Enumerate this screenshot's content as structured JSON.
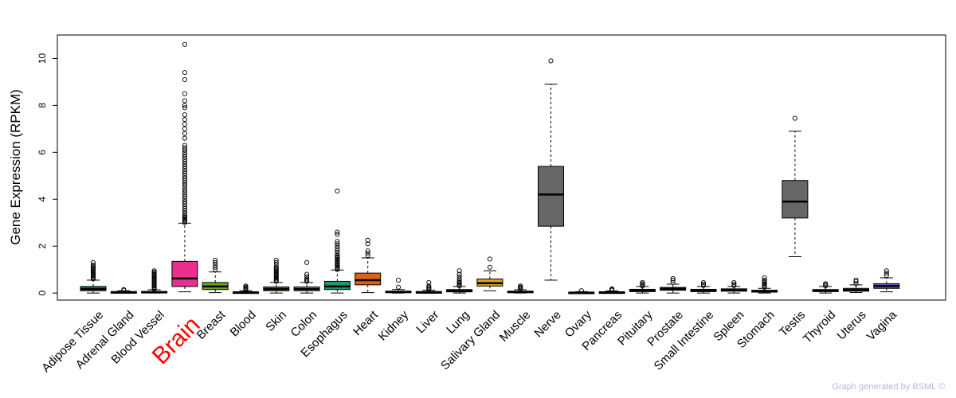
{
  "chart_data": {
    "type": "boxplot",
    "ylabel": "Gene Expression (RPKM)",
    "ylim": [
      -0.3,
      11
    ],
    "yticks": [
      0,
      2,
      4,
      6,
      8,
      10
    ],
    "highlight_category": "Brain",
    "highlight_color": "#ff0000",
    "categories": [
      "Adipose Tissue",
      "Adrenal Gland",
      "Blood Vessel",
      "Brain",
      "Breast",
      "Blood",
      "Skin",
      "Colon",
      "Esophagus",
      "Heart",
      "Kidney",
      "Liver",
      "Lung",
      "Salivary Gland",
      "Muscle",
      "Nerve",
      "Ovary",
      "Pancreas",
      "Pituitary",
      "Prostate",
      "Small Intestine",
      "Spleen",
      "Stomach",
      "Testis",
      "Thyroid",
      "Uterus",
      "Vagina"
    ],
    "boxes": [
      {
        "name": "Adipose Tissue",
        "color": "#1a7a4a",
        "whisker_low": 0.0,
        "q1": 0.1,
        "median": 0.17,
        "q3": 0.28,
        "whisker_high": 0.55,
        "outliers": [
          0.6,
          0.65,
          0.7,
          0.75,
          0.8,
          0.85,
          0.9,
          0.95,
          1.0,
          1.05,
          1.1,
          1.15,
          1.2,
          1.3
        ]
      },
      {
        "name": "Adrenal Gland",
        "color": "#444444",
        "whisker_low": 0.0,
        "q1": 0.02,
        "median": 0.04,
        "q3": 0.06,
        "whisker_high": 0.1,
        "outliers": [
          0.12,
          0.15
        ]
      },
      {
        "name": "Blood Vessel",
        "color": "#222222",
        "whisker_low": 0.0,
        "q1": 0.02,
        "median": 0.04,
        "q3": 0.07,
        "whisker_high": 0.14,
        "outliers": [
          0.16,
          0.2,
          0.25,
          0.3,
          0.35,
          0.4,
          0.45,
          0.5,
          0.55,
          0.6,
          0.65,
          0.7,
          0.75,
          0.8,
          0.85,
          0.9,
          0.95
        ]
      },
      {
        "name": "Brain",
        "color": "#e8308f",
        "whisker_low": 0.05,
        "q1": 0.28,
        "median": 0.62,
        "q3": 1.35,
        "whisker_high": 2.98,
        "outliers": [
          3.0,
          3.05,
          3.1,
          3.15,
          3.2,
          3.25,
          3.3,
          3.4,
          3.5,
          3.6,
          3.7,
          3.8,
          3.9,
          4.0,
          4.1,
          4.2,
          4.3,
          4.4,
          4.5,
          4.6,
          4.7,
          4.8,
          4.9,
          5.0,
          5.1,
          5.2,
          5.3,
          5.4,
          5.5,
          5.6,
          5.7,
          5.8,
          5.9,
          6.0,
          6.1,
          6.2,
          6.3,
          6.6,
          6.8,
          7.0,
          7.2,
          7.4,
          7.6,
          7.9,
          8.0,
          8.2,
          8.5,
          9.1,
          9.4,
          10.6
        ]
      },
      {
        "name": "Breast",
        "color": "#6aa520",
        "whisker_low": 0.02,
        "q1": 0.15,
        "median": 0.28,
        "q3": 0.45,
        "whisker_high": 0.9,
        "outliers": [
          1.0,
          1.1,
          1.2,
          1.3,
          1.4
        ]
      },
      {
        "name": "Blood",
        "color": "#222222",
        "whisker_low": 0.0,
        "q1": 0.01,
        "median": 0.03,
        "q3": 0.05,
        "whisker_high": 0.1,
        "outliers": [
          0.14,
          0.18,
          0.22,
          0.26,
          0.3
        ]
      },
      {
        "name": "Skin",
        "color": "#8a6a10",
        "whisker_low": 0.0,
        "q1": 0.1,
        "median": 0.17,
        "q3": 0.26,
        "whisker_high": 0.45,
        "outliers": [
          0.5,
          0.55,
          0.6,
          0.65,
          0.7,
          0.75,
          0.8,
          0.85,
          0.9,
          0.95,
          1.0,
          1.05,
          1.1,
          1.2,
          1.3,
          1.4
        ]
      },
      {
        "name": "Colon",
        "color": "#888888",
        "whisker_low": 0.0,
        "q1": 0.1,
        "median": 0.17,
        "q3": 0.26,
        "whisker_high": 0.45,
        "outliers": [
          0.5,
          0.55,
          0.6,
          0.7,
          0.8,
          1.3
        ]
      },
      {
        "name": "Esophagus",
        "color": "#1a9a6a",
        "whisker_low": 0.0,
        "q1": 0.15,
        "median": 0.28,
        "q3": 0.5,
        "whisker_high": 0.98,
        "outliers": [
          1.0,
          1.05,
          1.1,
          1.15,
          1.2,
          1.25,
          1.3,
          1.35,
          1.4,
          1.45,
          1.5,
          1.55,
          1.6,
          1.7,
          1.8,
          1.9,
          2.0,
          2.1,
          2.2,
          2.5,
          2.6,
          4.35
        ]
      },
      {
        "name": "Heart",
        "color": "#e06010",
        "whisker_low": 0.02,
        "q1": 0.35,
        "median": 0.55,
        "q3": 0.85,
        "whisker_high": 1.5,
        "outliers": [
          1.6,
          1.7,
          1.8,
          2.1,
          2.25
        ]
      },
      {
        "name": "Kidney",
        "color": "#444444",
        "whisker_low": 0.0,
        "q1": 0.02,
        "median": 0.05,
        "q3": 0.08,
        "whisker_high": 0.15,
        "outliers": [
          0.25,
          0.55
        ]
      },
      {
        "name": "Liver",
        "color": "#444444",
        "whisker_low": 0.0,
        "q1": 0.02,
        "median": 0.04,
        "q3": 0.06,
        "whisker_high": 0.12,
        "outliers": [
          0.15,
          0.2,
          0.25,
          0.3,
          0.45
        ]
      },
      {
        "name": "Lung",
        "color": "#666666",
        "whisker_low": 0.0,
        "q1": 0.05,
        "median": 0.09,
        "q3": 0.15,
        "whisker_high": 0.28,
        "outliers": [
          0.3,
          0.35,
          0.4,
          0.45,
          0.5,
          0.6,
          0.7,
          0.8,
          0.95
        ]
      },
      {
        "name": "Salivary Gland",
        "color": "#e0a020",
        "whisker_low": 0.1,
        "q1": 0.3,
        "median": 0.42,
        "q3": 0.6,
        "whisker_high": 0.95,
        "outliers": [
          1.1,
          1.45
        ]
      },
      {
        "name": "Muscle",
        "color": "#666666",
        "whisker_low": 0.0,
        "q1": 0.02,
        "median": 0.05,
        "q3": 0.08,
        "whisker_high": 0.14,
        "outliers": [
          0.18,
          0.22,
          0.26,
          0.3
        ]
      },
      {
        "name": "Nerve",
        "color": "#666666",
        "whisker_low": 0.55,
        "q1": 2.85,
        "median": 4.2,
        "q3": 5.4,
        "whisker_high": 8.9,
        "outliers": [
          9.9
        ]
      },
      {
        "name": "Ovary",
        "color": "#444444",
        "whisker_low": 0.0,
        "q1": 0.01,
        "median": 0.02,
        "q3": 0.04,
        "whisker_high": 0.06,
        "outliers": [
          0.1
        ]
      },
      {
        "name": "Pancreas",
        "color": "#444444",
        "whisker_low": 0.0,
        "q1": 0.01,
        "median": 0.03,
        "q3": 0.05,
        "whisker_high": 0.09,
        "outliers": [
          0.12,
          0.15,
          0.18
        ]
      },
      {
        "name": "Pituitary",
        "color": "#444444",
        "whisker_low": 0.0,
        "q1": 0.06,
        "median": 0.1,
        "q3": 0.16,
        "whisker_high": 0.28,
        "outliers": [
          0.3,
          0.35,
          0.4,
          0.45
        ]
      },
      {
        "name": "Prostate",
        "color": "#a01040",
        "whisker_low": 0.0,
        "q1": 0.12,
        "median": 0.18,
        "q3": 0.24,
        "whisker_high": 0.38,
        "outliers": [
          0.45,
          0.55,
          0.62
        ]
      },
      {
        "name": "Small Intestine",
        "color": "#1a6a3a",
        "whisker_low": 0.0,
        "q1": 0.06,
        "median": 0.1,
        "q3": 0.16,
        "whisker_high": 0.28,
        "outliers": [
          0.32,
          0.38,
          0.45
        ]
      },
      {
        "name": "Spleen",
        "color": "#444444",
        "whisker_low": 0.0,
        "q1": 0.08,
        "median": 0.12,
        "q3": 0.18,
        "whisker_high": 0.28,
        "outliers": [
          0.32,
          0.38,
          0.45
        ]
      },
      {
        "name": "Stomach",
        "color": "#444444",
        "whisker_low": 0.0,
        "q1": 0.04,
        "median": 0.07,
        "q3": 0.12,
        "whisker_high": 0.2,
        "outliers": [
          0.25,
          0.3,
          0.35,
          0.4,
          0.45,
          0.5,
          0.55,
          0.65
        ]
      },
      {
        "name": "Testis",
        "color": "#666666",
        "whisker_low": 1.55,
        "q1": 3.2,
        "median": 3.9,
        "q3": 4.8,
        "whisker_high": 6.9,
        "outliers": [
          7.45
        ]
      },
      {
        "name": "Thyroid",
        "color": "#222222",
        "whisker_low": 0.0,
        "q1": 0.06,
        "median": 0.1,
        "q3": 0.15,
        "whisker_high": 0.28,
        "outliers": [
          0.3,
          0.35,
          0.4
        ]
      },
      {
        "name": "Uterus",
        "color": "#8a5a20",
        "whisker_low": 0.02,
        "q1": 0.08,
        "median": 0.13,
        "q3": 0.2,
        "whisker_high": 0.35,
        "outliers": [
          0.4,
          0.5,
          0.55
        ]
      },
      {
        "name": "Vagina",
        "color": "#6060d0",
        "whisker_low": 0.05,
        "q1": 0.2,
        "median": 0.3,
        "q3": 0.4,
        "whisker_high": 0.65,
        "outliers": [
          0.75,
          0.85,
          0.95
        ]
      }
    ]
  },
  "footer": "Graph generated by BSML ©"
}
